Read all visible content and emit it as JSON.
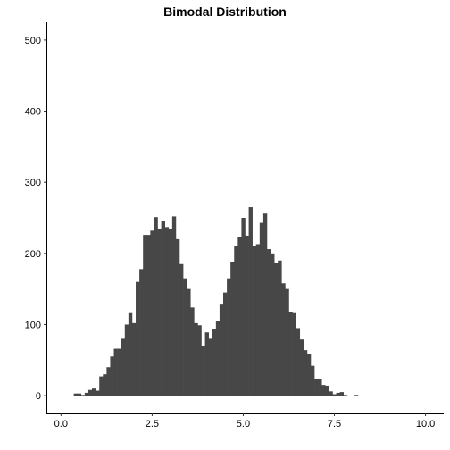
{
  "chart_data": {
    "type": "bar",
    "title": "Bimodal Distribution",
    "xlabel": "",
    "ylabel": "",
    "xlim": [
      -0.4,
      10.5
    ],
    "ylim": [
      -25,
      525
    ],
    "x_ticks": [
      "0.0",
      "2.5",
      "5.0",
      "7.5",
      "10.0"
    ],
    "y_ticks": [
      "0",
      "100",
      "200",
      "300",
      "400",
      "500"
    ],
    "grid": false,
    "bar_color": "#474747",
    "bin_width": 0.1,
    "x": [
      0.4,
      0.5,
      0.6,
      0.7,
      0.8,
      0.9,
      1.0,
      1.1,
      1.2,
      1.3,
      1.4,
      1.5,
      1.6,
      1.7,
      1.8,
      1.9,
      2.0,
      2.1,
      2.2,
      2.3,
      2.4,
      2.5,
      2.6,
      2.7,
      2.8,
      2.9,
      3.0,
      3.1,
      3.2,
      3.3,
      3.4,
      3.5,
      3.6,
      3.7,
      3.8,
      3.9,
      4.0,
      4.1,
      4.2,
      4.3,
      4.4,
      4.5,
      4.6,
      4.7,
      4.8,
      4.9,
      5.0,
      5.1,
      5.2,
      5.3,
      5.4,
      5.5,
      5.6,
      5.7,
      5.8,
      5.9,
      6.0,
      6.1,
      6.2,
      6.3,
      6.4,
      6.5,
      6.6,
      6.7,
      6.8,
      6.9,
      7.0,
      7.1,
      7.2,
      7.3,
      7.4,
      7.5,
      7.6,
      7.7,
      7.8,
      7.9,
      8.0,
      8.1,
      8.2,
      8.3,
      8.4,
      8.5,
      8.6,
      8.7,
      8.8,
      8.9
    ],
    "values": [
      3,
      3,
      1,
      4,
      8,
      10,
      7,
      27,
      30,
      40,
      55,
      66,
      66,
      80,
      100,
      116,
      102,
      160,
      178,
      226,
      226,
      232,
      251,
      235,
      245,
      237,
      235,
      252,
      220,
      185,
      165,
      150,
      124,
      102,
      99,
      70,
      89,
      80,
      93,
      105,
      128,
      145,
      165,
      188,
      210,
      223,
      250,
      225,
      265,
      210,
      213,
      243,
      256,
      206,
      200,
      186,
      190,
      158,
      150,
      118,
      116,
      95,
      79,
      64,
      58,
      42,
      24,
      24,
      15,
      14,
      6,
      2,
      4,
      5,
      1,
      0,
      0,
      1,
      0,
      0,
      0,
      0,
      0,
      0,
      0,
      0
    ]
  }
}
